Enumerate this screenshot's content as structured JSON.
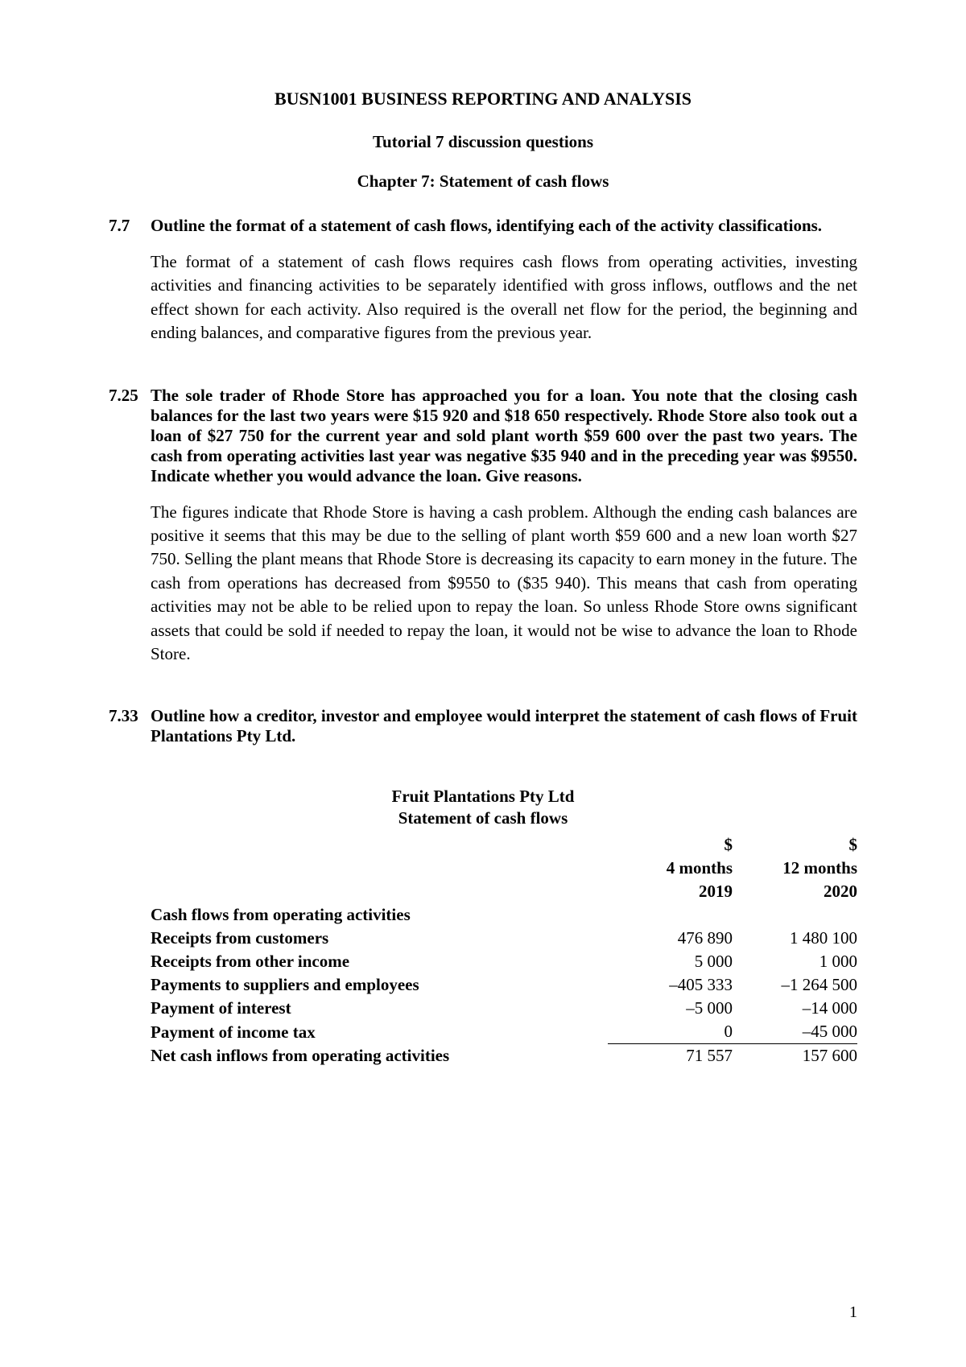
{
  "course_title": "BUSN1001 BUSINESS REPORTING AND ANALYSIS",
  "subtitle": "Tutorial 7 discussion questions",
  "chapter_title": "Chapter 7: Statement of cash flows",
  "q1": {
    "num": "7.7",
    "text": "Outline the format of a statement of cash flows, identifying each of the activity classifications.",
    "answer": "The format of a statement of cash flows requires cash flows from operating activities, investing activities and financing activities to be separately identified with gross inflows, outflows and the net effect shown for each activity. Also required is the overall net flow for the period, the beginning and ending balances, and comparative figures from the previous year."
  },
  "q2": {
    "num": "7.25",
    "text": "The sole trader of Rhode Store has approached you for a loan. You note that the closing cash balances for the last two years were $15 920 and $18 650 respectively. Rhode Store also took out a loan of $27 750 for the current year and sold plant worth $59 600 over the past two years. The cash from operating activities last year was negative $35 940 and in the preceding year was $9550. Indicate whether you would advance the loan. Give reasons.",
    "answer": "The figures indicate that Rhode Store is having a cash problem. Although the ending cash balances are positive it seems that this may be due to the selling of plant worth $59 600 and a new loan worth $27 750. Selling the plant means that Rhode Store is decreasing its capacity to earn money in the future. The cash from operations has decreased from $9550 to ($35 940). This means that cash from operating activities may not be able to be relied upon to repay the loan. So unless Rhode Store owns significant assets that could be sold if needed to repay the loan, it would not be wise to advance the loan to Rhode Store."
  },
  "q3": {
    "num": "7.33",
    "text": "Outline how a creditor, investor and employee would interpret the statement of cash flows of Fruit Plantations Pty Ltd."
  },
  "company_name": "Fruit Plantations Pty Ltd",
  "statement_name": "Statement of cash flows",
  "table": {
    "header": {
      "currency": "$",
      "period1_label": "4 months",
      "period1_year": "2019",
      "period2_label": "12 months",
      "period2_year": "2020"
    },
    "section_title": "Cash flows from operating activities",
    "rows": [
      {
        "label": "Receipts from customers",
        "v1": "476 890",
        "v2": "1 480 100"
      },
      {
        "label": "Receipts from other income",
        "v1": "5 000",
        "v2": "1 000"
      },
      {
        "label": "Payments to suppliers and employees",
        "v1": "–405 333",
        "v2": "–1 264 500"
      },
      {
        "label": "Payment of interest",
        "v1": "–5 000",
        "v2": "–14 000"
      },
      {
        "label": "Payment of income tax",
        "v1": "0",
        "v2": "–45 000"
      }
    ],
    "net_row": {
      "label": "Net cash inflows from operating activities",
      "v1": "71 557",
      "v2": "157 600"
    }
  },
  "page_number": "1"
}
